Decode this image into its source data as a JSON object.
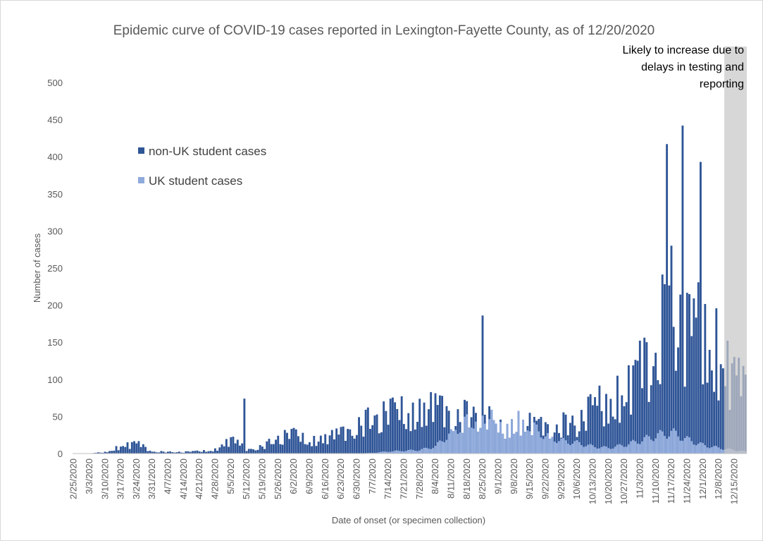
{
  "chart_data": {
    "type": "bar",
    "stacked": true,
    "title": "Epidemic curve of COVID-19 cases reported in Lexington-Fayette County, as of 12/20/2020",
    "xlabel": "Date of onset (or specimen collection)",
    "ylabel": "Number of cases",
    "ylim": [
      0,
      500
    ],
    "y_ticks": [
      0,
      50,
      100,
      150,
      200,
      250,
      300,
      350,
      400,
      450,
      500
    ],
    "x_tick_labels": [
      "2/25/2020",
      "3/3/2020",
      "3/10/2020",
      "3/17/2020",
      "3/24/2020",
      "3/31/2020",
      "4/7/2020",
      "4/14/2020",
      "4/21/2020",
      "4/28/2020",
      "5/5/2020",
      "5/12/2020",
      "5/19/2020",
      "5/26/2020",
      "6/2/2020",
      "6/9/2020",
      "6/16/2020",
      "6/23/2020",
      "6/30/2020",
      "7/7/2020",
      "7/14/2020",
      "7/21/2020",
      "7/28/2020",
      "8/4/2020",
      "8/11/2020",
      "8/18/2020",
      "8/25/2020",
      "9/1/2020",
      "9/8/2020",
      "9/15/2020",
      "9/22/2020",
      "9/29/2020",
      "10/6/2020",
      "10/13/2020",
      "10/20/2020",
      "10/27/2020",
      "11/3/2020",
      "11/10/2020",
      "11/17/2020",
      "11/24/2020",
      "12/1/2020",
      "12/8/2020",
      "12/15/2020"
    ],
    "date_start": "2/25/2020",
    "date_end": "12/20/2020",
    "grid": false,
    "legend_position": "upper-left",
    "annotation": {
      "lines": [
        "Likely to increase due to",
        "delays in testing and",
        "reporting"
      ],
      "shaded_from": "12/11/2020",
      "shaded_to": "12/20/2020"
    },
    "series": [
      {
        "name": "non-UK student cases",
        "color": "#2f5597",
        "weekly_values": [
          0,
          0,
          2,
          9,
          13,
          3,
          2,
          2,
          3,
          5,
          18,
          6,
          9,
          20,
          25,
          17,
          20,
          25,
          38,
          45,
          52,
          55,
          55,
          58,
          52,
          50,
          55,
          30,
          42,
          38,
          33,
          38,
          40,
          58,
          70,
          75,
          105,
          140,
          205,
          150,
          165,
          130,
          95,
          75
        ],
        "peaks": [
          {
            "date": "5/11/2020",
            "value": 74
          },
          {
            "date": "8/25/2020",
            "value": 186
          },
          {
            "date": "11/15/2020",
            "value": 417
          },
          {
            "date": "11/22/2020",
            "value": 442
          },
          {
            "date": "11/30/2020",
            "value": 393
          }
        ]
      },
      {
        "name": "UK student cases",
        "color": "#8faadc",
        "weekly_values": [
          0,
          0,
          0,
          0,
          0,
          0,
          0,
          0,
          0,
          0,
          0,
          0,
          0,
          0,
          0,
          0,
          0,
          0,
          0,
          1,
          3,
          4,
          5,
          10,
          30,
          45,
          50,
          60,
          65,
          40,
          25,
          18,
          15,
          10,
          8,
          12,
          18,
          25,
          30,
          20,
          12,
          8,
          5,
          2
        ]
      }
    ]
  }
}
